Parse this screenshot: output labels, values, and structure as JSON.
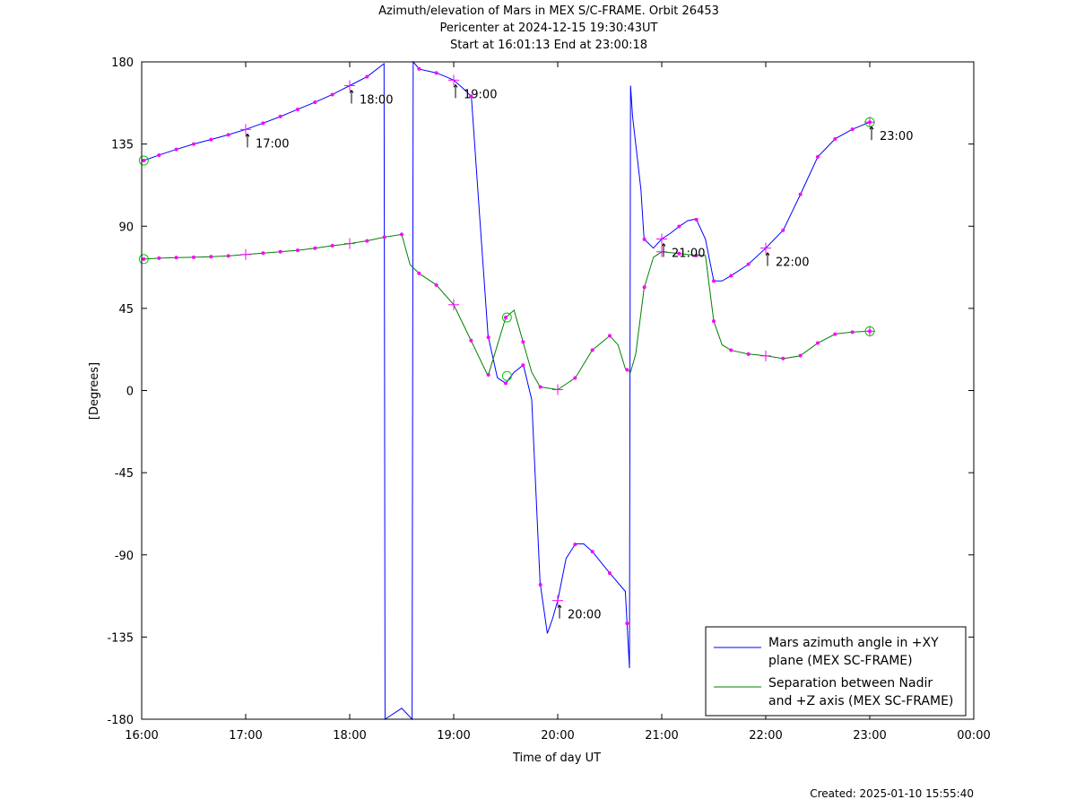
{
  "chart_data": {
    "type": "line",
    "title": [
      "Azimuth/elevation of Mars in MEX S/C-FRAME.  Orbit 26453",
      "Pericenter at 2024-12-15 19:30:43UT",
      "Start at 16:01:13 End at 23:00:18"
    ],
    "xlabel": "Time of day UT",
    "ylabel": "[Degrees]",
    "xlim": [
      16,
      24
    ],
    "ylim": [
      -180,
      180
    ],
    "x_ticks": [
      "16:00",
      "17:00",
      "18:00",
      "19:00",
      "20:00",
      "21:00",
      "22:00",
      "23:00",
      "00:00"
    ],
    "y_ticks": [
      "180",
      "135",
      "90",
      "45",
      "0",
      "-45",
      "-90",
      "-135",
      "-180"
    ],
    "grid": false,
    "legend_position": "bottom-right",
    "footer": "Created: 2025-01-10 15:55:40",
    "colors": {
      "azimuth": "#0000ff",
      "separation": "#008000",
      "marker": "#ff00ff",
      "endpoint": "#00cc00"
    },
    "series": [
      {
        "name": "Mars azimuth angle in +XY plane (MEX SC-FRAME)",
        "legend_lines": [
          "Mars azimuth angle in +XY",
          "plane (MEX SC-FRAME)"
        ],
        "x": [
          16.02,
          16.17,
          16.33,
          16.5,
          16.67,
          16.83,
          17.0,
          17.17,
          17.33,
          17.5,
          17.67,
          17.83,
          18.0,
          18.17,
          18.33,
          18.335,
          18.34,
          18.5,
          18.6,
          18.605,
          18.61,
          18.67,
          18.83,
          18.92,
          19.0,
          19.08,
          19.17,
          19.25,
          19.33,
          19.42,
          19.5,
          19.58,
          19.67,
          19.75,
          19.83,
          19.9,
          19.95,
          20.0,
          20.08,
          20.17,
          20.25,
          20.33,
          20.5,
          20.65,
          20.69,
          20.7,
          20.72,
          20.8,
          20.83,
          20.92,
          21.0,
          21.08,
          21.17,
          21.25,
          21.33,
          21.42,
          21.5,
          21.58,
          21.67,
          21.83,
          22.0,
          22.17,
          22.33,
          22.5,
          22.67,
          22.83,
          23.0
        ],
        "y": [
          126,
          129,
          132,
          135,
          137.5,
          140,
          143,
          146.5,
          150,
          154,
          158,
          162,
          167,
          172,
          179,
          0,
          -180,
          -174,
          -180,
          0,
          180,
          176,
          174,
          172,
          170,
          166,
          161,
          95,
          30,
          7,
          4,
          10,
          14,
          -5,
          -105,
          -133,
          -125,
          -115,
          -92,
          -84,
          -84,
          -88,
          -100,
          -110,
          -152,
          167,
          150,
          110,
          83,
          78,
          83,
          86,
          90,
          93,
          94,
          83,
          60,
          60,
          63,
          69,
          78,
          88,
          107,
          128,
          138,
          143,
          147
        ]
      },
      {
        "name": "Separation between Nadir and +Z axis (MEX SC-FRAME)",
        "legend_lines": [
          "Separation between Nadir",
          "and +Z axis (MEX SC-FRAME)"
        ],
        "x": [
          16.02,
          16.17,
          16.33,
          16.5,
          16.67,
          16.83,
          17.0,
          17.17,
          17.33,
          17.5,
          17.67,
          17.83,
          18.0,
          18.17,
          18.33,
          18.5,
          18.58,
          18.67,
          18.83,
          19.0,
          19.17,
          19.33,
          19.5,
          19.58,
          19.67,
          19.75,
          19.83,
          20.0,
          20.17,
          20.33,
          20.5,
          20.58,
          20.65,
          20.7,
          20.75,
          20.83,
          20.92,
          21.0,
          21.17,
          21.33,
          21.42,
          21.5,
          21.58,
          21.67,
          21.83,
          22.0,
          22.17,
          22.33,
          22.5,
          22.67,
          22.83,
          23.0
        ],
        "y": [
          72,
          72.5,
          72.8,
          73,
          73.3,
          73.7,
          74.5,
          75.3,
          76,
          76.8,
          78,
          79.3,
          80.5,
          82,
          84,
          85.5,
          69,
          64,
          58,
          47,
          27,
          8,
          40,
          44,
          26,
          10,
          2,
          0.5,
          7,
          22,
          30,
          25,
          12,
          10,
          20,
          56,
          73,
          76,
          75,
          74,
          74,
          38,
          25,
          22,
          20,
          19,
          17.5,
          19,
          26,
          31,
          32,
          32.5
        ]
      }
    ],
    "marker_times": [
      "16:00",
      "17:00",
      "18:00",
      "19:00",
      "20:00",
      "21:00",
      "22:00",
      "23:00"
    ],
    "hour_labels": [
      {
        "text": "17:00",
        "x": 17.0,
        "series": 0
      },
      {
        "text": "18:00",
        "x": 18.0,
        "series": 0
      },
      {
        "text": "19:00",
        "x": 19.0,
        "series": 0
      },
      {
        "text": "20:00",
        "x": 20.0,
        "series": 0
      },
      {
        "text": "21:00",
        "x": 21.0,
        "series": 0
      },
      {
        "text": "22:00",
        "x": 22.0,
        "series": 0
      },
      {
        "text": "23:00",
        "x": 23.0,
        "series": 0
      }
    ]
  }
}
